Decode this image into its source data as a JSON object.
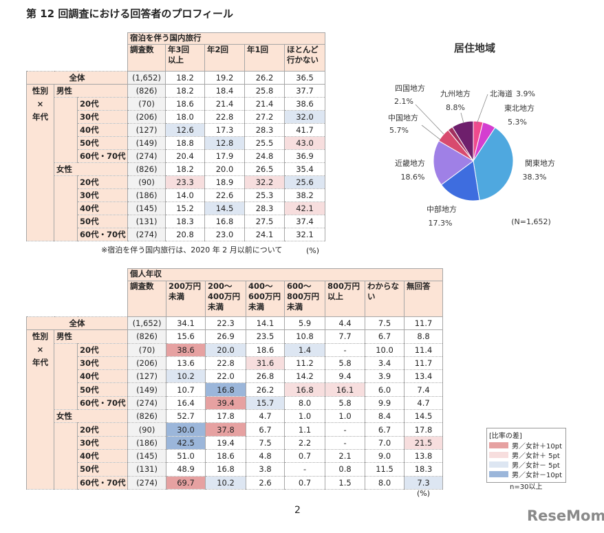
{
  "title": "第 12 回調査における回答者のプロフィール",
  "table1": {
    "title": "宿泊を伴う国内旅行",
    "columns": [
      "調査数",
      "年3回\n以上",
      "年2回",
      "年1回",
      "ほとんど\n行かない"
    ],
    "total": {
      "label": "全体",
      "n": "(1,652)",
      "values": [
        "18.2",
        "19.2",
        "26.2",
        "36.5"
      ]
    },
    "side_label": [
      "性別",
      "×",
      "年代"
    ],
    "groups": [
      {
        "label": "男性",
        "n": "(826)",
        "values": [
          "18.2",
          "18.4",
          "25.8",
          "37.7"
        ],
        "rows": [
          {
            "label": "20代",
            "n": "(70)",
            "values": [
              "18.6",
              "21.4",
              "21.4",
              "38.6"
            ]
          },
          {
            "label": "30代",
            "n": "(206)",
            "values": [
              "18.0",
              "22.8",
              "27.2",
              "32.0"
            ],
            "shades": [
              null,
              null,
              null,
              "#dde6f2"
            ]
          },
          {
            "label": "40代",
            "n": "(127)",
            "values": [
              "12.6",
              "17.3",
              "28.3",
              "41.7"
            ],
            "shades": [
              "#dde6f2",
              null,
              null,
              null
            ]
          },
          {
            "label": "50代",
            "n": "(149)",
            "values": [
              "18.8",
              "12.8",
              "25.5",
              "43.0"
            ],
            "shades": [
              null,
              "#dde6f2",
              null,
              "#f7dede"
            ]
          },
          {
            "label": "60代・70代",
            "n": "(274)",
            "values": [
              "20.4",
              "17.9",
              "24.8",
              "36.9"
            ]
          }
        ]
      },
      {
        "label": "女性",
        "n": "(826)",
        "values": [
          "18.2",
          "20.0",
          "26.5",
          "35.4"
        ],
        "rows": [
          {
            "label": "20代",
            "n": "(90)",
            "values": [
              "23.3",
              "18.9",
              "32.2",
              "25.6"
            ],
            "shades": [
              "#f7dede",
              null,
              "#f7dede",
              "#dde6f2"
            ]
          },
          {
            "label": "30代",
            "n": "(186)",
            "values": [
              "14.0",
              "22.6",
              "25.3",
              "38.2"
            ]
          },
          {
            "label": "40代",
            "n": "(145)",
            "values": [
              "15.2",
              "14.5",
              "28.3",
              "42.1"
            ],
            "shades": [
              null,
              "#dde6f2",
              null,
              "#f7dede"
            ]
          },
          {
            "label": "50代",
            "n": "(131)",
            "values": [
              "18.3",
              "16.8",
              "27.5",
              "37.4"
            ]
          },
          {
            "label": "60代・70代",
            "n": "(274)",
            "values": [
              "20.8",
              "23.0",
              "24.1",
              "32.1"
            ]
          }
        ]
      }
    ],
    "note": "※宿泊を伴う国内旅行は、2020 年 2 月以前について",
    "unit": "(%)"
  },
  "table2": {
    "title": "個人年収",
    "columns": [
      "調査数",
      "200万円\n未満",
      "200～\n400万円\n未満",
      "400～\n600万円\n未満",
      "600～\n800万円\n未満",
      "800万円\n以上",
      "わからない",
      "無回答"
    ],
    "total": {
      "label": "全体",
      "n": "(1,652)",
      "values": [
        "34.1",
        "22.3",
        "14.1",
        "5.9",
        "4.4",
        "7.5",
        "11.7"
      ]
    },
    "side_label": [
      "性別",
      "×",
      "年代"
    ],
    "groups": [
      {
        "label": "男性",
        "n": "(826)",
        "values": [
          "15.6",
          "26.9",
          "23.5",
          "10.8",
          "7.7",
          "6.7",
          "8.8"
        ],
        "rows": [
          {
            "label": "20代",
            "n": "(70)",
            "values": [
              "38.6",
              "20.0",
              "18.6",
              "1.4",
              "-",
              "10.0",
              "11.4"
            ],
            "shades": [
              "#e6a1a1",
              "#dde6f2",
              null,
              "#dde6f2",
              null,
              null,
              null
            ]
          },
          {
            "label": "30代",
            "n": "(206)",
            "values": [
              "13.6",
              "22.8",
              "31.6",
              "11.2",
              "5.8",
              "3.4",
              "11.7"
            ],
            "shades": [
              null,
              null,
              "#f7dede",
              null,
              null,
              null,
              null
            ]
          },
          {
            "label": "40代",
            "n": "(127)",
            "values": [
              "10.2",
              "22.0",
              "26.8",
              "14.2",
              "9.4",
              "3.9",
              "13.4"
            ],
            "shades": [
              "#dde6f2",
              null,
              null,
              null,
              null,
              null,
              null
            ]
          },
          {
            "label": "50代",
            "n": "(149)",
            "values": [
              "10.7",
              "16.8",
              "26.2",
              "16.8",
              "16.1",
              "6.0",
              "7.4"
            ],
            "shades": [
              null,
              "#9bb6da",
              null,
              "#f7dede",
              "#f7dede",
              null,
              null
            ]
          },
          {
            "label": "60代・70代",
            "n": "(274)",
            "values": [
              "16.4",
              "39.4",
              "15.7",
              "8.0",
              "5.8",
              "9.9",
              "4.7"
            ],
            "shades": [
              null,
              "#e6a1a1",
              "#dde6f2",
              null,
              null,
              null,
              null
            ]
          }
        ]
      },
      {
        "label": "女性",
        "n": "(826)",
        "values": [
          "52.7",
          "17.8",
          "4.7",
          "1.0",
          "1.0",
          "8.4",
          "14.5"
        ],
        "rows": [
          {
            "label": "20代",
            "n": "(90)",
            "values": [
              "30.0",
              "37.8",
              "6.7",
              "1.1",
              "-",
              "6.7",
              "17.8"
            ],
            "shades": [
              "#9bb6da",
              "#e6a1a1",
              null,
              null,
              null,
              null,
              null
            ]
          },
          {
            "label": "30代",
            "n": "(186)",
            "values": [
              "42.5",
              "19.4",
              "7.5",
              "2.2",
              "-",
              "7.0",
              "21.5"
            ],
            "shades": [
              "#9bb6da",
              null,
              null,
              null,
              null,
              null,
              "#f7dede"
            ]
          },
          {
            "label": "40代",
            "n": "(145)",
            "values": [
              "51.0",
              "18.6",
              "4.8",
              "0.7",
              "2.1",
              "9.0",
              "13.8"
            ]
          },
          {
            "label": "50代",
            "n": "(131)",
            "values": [
              "48.9",
              "16.8",
              "3.8",
              "-",
              "0.8",
              "11.5",
              "18.3"
            ]
          },
          {
            "label": "60代・70代",
            "n": "(274)",
            "values": [
              "69.7",
              "10.2",
              "2.6",
              "0.7",
              "1.5",
              "8.0",
              "7.3"
            ],
            "shades": [
              "#e6a1a1",
              "#dde6f2",
              null,
              null,
              null,
              null,
              "#dde6f2"
            ]
          }
        ]
      }
    ],
    "unit": "(%)"
  },
  "legend": {
    "title": "[比率の差]",
    "items": [
      {
        "label": "男／女計＋10pt",
        "color": "#e6a1a1"
      },
      {
        "label": "男／女計＋ 5pt",
        "color": "#f7dede"
      },
      {
        "label": "男／女計－ 5pt",
        "color": "#dde6f2"
      },
      {
        "label": "男／女計－10pt",
        "color": "#9bb6da"
      }
    ],
    "note": "n=30以上"
  },
  "chart_data": {
    "type": "pie",
    "title": "居住地域",
    "categories": [
      "北海道",
      "東北地方",
      "関東地方",
      "中部地方",
      "近畿地方",
      "中国地方",
      "四国地方",
      "九州地方"
    ],
    "values": [
      3.9,
      5.3,
      38.3,
      17.3,
      18.6,
      5.7,
      2.1,
      8.8
    ],
    "value_labels": [
      "3.9%",
      "5.3%",
      "38.3%",
      "17.3%",
      "18.6%",
      "5.7%",
      "2.1%",
      "8.8%"
    ],
    "colors": [
      "#ef4a8e",
      "#d43fd0",
      "#4fa8df",
      "#3e6ddf",
      "#9f80e6",
      "#d84a6e",
      "#a3305f",
      "#6e1f6c"
    ],
    "note": "(N=1,652)"
  },
  "page_number": "2",
  "logo": "ReseMom"
}
